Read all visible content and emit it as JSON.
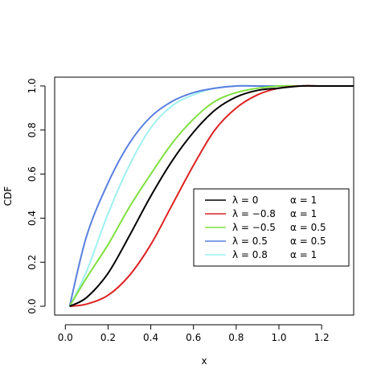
{
  "chart_data": {
    "type": "line",
    "title": "",
    "xlabel": "x",
    "ylabel": "CDF",
    "xlim": [
      -0.05,
      1.35
    ],
    "ylim": [
      -0.04,
      1.04
    ],
    "x_ticks": [
      0.0,
      0.2,
      0.4,
      0.6,
      0.8,
      1.0,
      1.2
    ],
    "x_tick_labels": [
      "0.0",
      "0.2",
      "0.4",
      "0.6",
      "0.8",
      "1.0",
      "1.2"
    ],
    "y_ticks": [
      0.0,
      0.2,
      0.4,
      0.6,
      0.8,
      1.0
    ],
    "y_tick_labels": [
      "0.0",
      "0.2",
      "0.4",
      "0.6",
      "0.8",
      "1.0"
    ],
    "grid": false,
    "legend_position": "center-right",
    "series": [
      {
        "name": "λ = 0",
        "alpha_label": "α = 1",
        "color": "#000000",
        "x": [
          0.02,
          0.1,
          0.2,
          0.3,
          0.4,
          0.5,
          0.6,
          0.7,
          0.8,
          0.9,
          1.0,
          1.1,
          1.2,
          1.35
        ],
        "y": [
          0.0,
          0.04,
          0.15,
          0.32,
          0.5,
          0.66,
          0.79,
          0.89,
          0.95,
          0.98,
          0.99,
          1.0,
          1.0,
          1.0
        ]
      },
      {
        "name": "λ = −0.8",
        "alpha_label": "α = 1",
        "color": "#dd2222",
        "x": [
          0.02,
          0.1,
          0.2,
          0.3,
          0.4,
          0.5,
          0.6,
          0.7,
          0.8,
          0.9,
          1.0,
          1.1,
          1.2,
          1.35
        ],
        "y": [
          0.0,
          0.01,
          0.05,
          0.14,
          0.28,
          0.46,
          0.64,
          0.8,
          0.9,
          0.96,
          0.99,
          1.0,
          1.0,
          1.0
        ]
      },
      {
        "name": "λ = −0.5",
        "alpha_label": "α = 0.5",
        "color": "#7fe040",
        "x": [
          0.02,
          0.1,
          0.2,
          0.3,
          0.4,
          0.5,
          0.6,
          0.7,
          0.8,
          0.9,
          1.0,
          1.1,
          1.2,
          1.35
        ],
        "y": [
          0.0,
          0.13,
          0.28,
          0.45,
          0.6,
          0.74,
          0.85,
          0.93,
          0.97,
          0.99,
          1.0,
          1.0,
          1.0,
          1.0
        ]
      },
      {
        "name": "λ = 0.5",
        "alpha_label": "α = 0.5",
        "color": "#5a7fe0",
        "x": [
          0.02,
          0.1,
          0.2,
          0.3,
          0.4,
          0.5,
          0.6,
          0.7,
          0.8,
          0.9,
          1.0,
          1.1,
          1.2,
          1.35
        ],
        "y": [
          0.0,
          0.32,
          0.56,
          0.74,
          0.86,
          0.93,
          0.97,
          0.99,
          1.0,
          1.0,
          1.0,
          1.0,
          1.0,
          1.0
        ]
      },
      {
        "name": "λ = 0.8",
        "alpha_label": "α = 1",
        "color": "#9ff0f0",
        "x": [
          0.02,
          0.1,
          0.2,
          0.3,
          0.4,
          0.5,
          0.6,
          0.7,
          0.8,
          0.9,
          1.0,
          1.1,
          1.2,
          1.35
        ],
        "y": [
          0.0,
          0.16,
          0.42,
          0.64,
          0.81,
          0.91,
          0.96,
          0.99,
          1.0,
          1.0,
          1.0,
          1.0,
          1.0,
          1.0
        ]
      }
    ]
  }
}
